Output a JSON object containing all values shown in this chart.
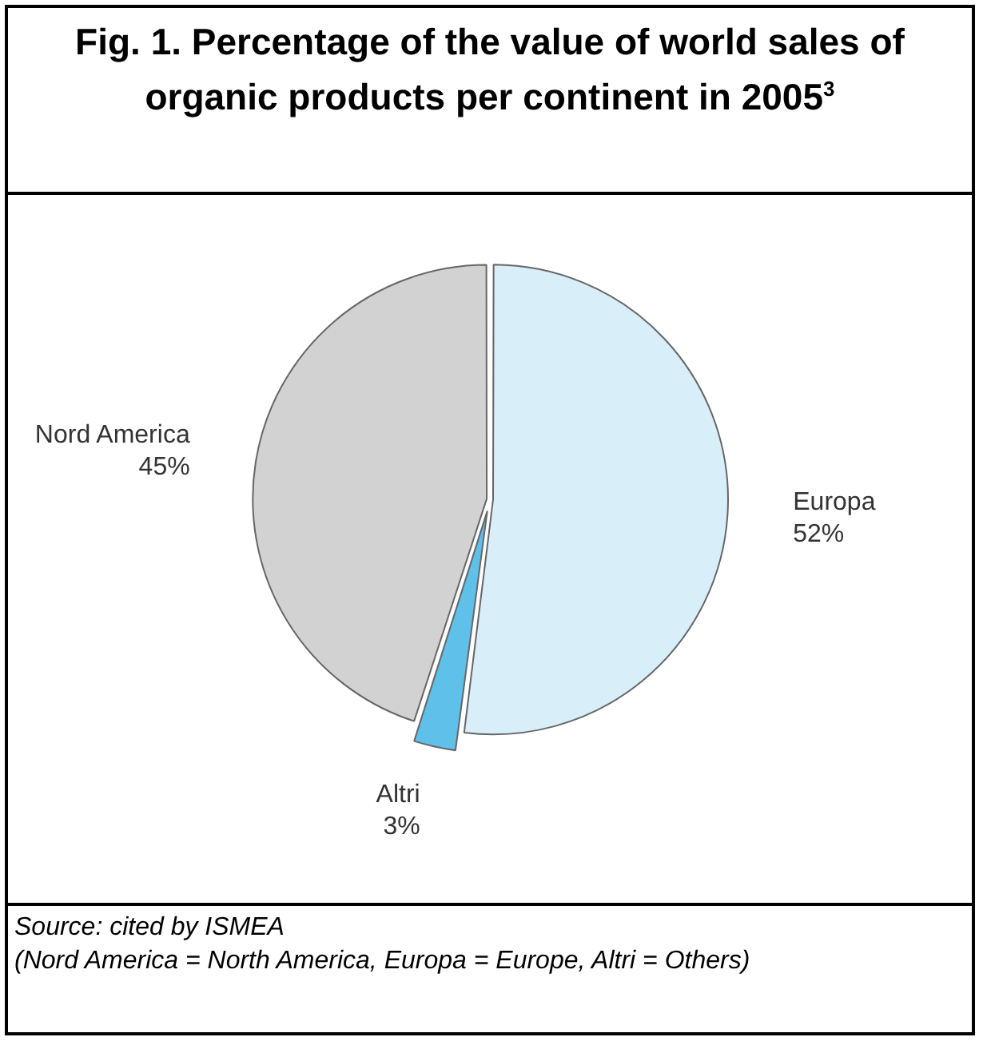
{
  "chart_data": {
    "type": "pie",
    "title": "Fig. 1.  Percentage of the value of world sales of organic products per continent in 2005$^{3}$",
    "categories": [
      "Europa",
      "Altri",
      "Nord America"
    ],
    "values": [
      52,
      3,
      45
    ],
    "colors": [
      "#d8eef9",
      "#5fc0ea",
      "#d2d2d2"
    ],
    "value_labels": [
      "52%",
      "3%",
      "45%"
    ],
    "legend": false,
    "annotations": [
      "Source: cited by ISMEA",
      "(Nord America = North America, Europa = Europe, Altri = Others)"
    ]
  }
}
